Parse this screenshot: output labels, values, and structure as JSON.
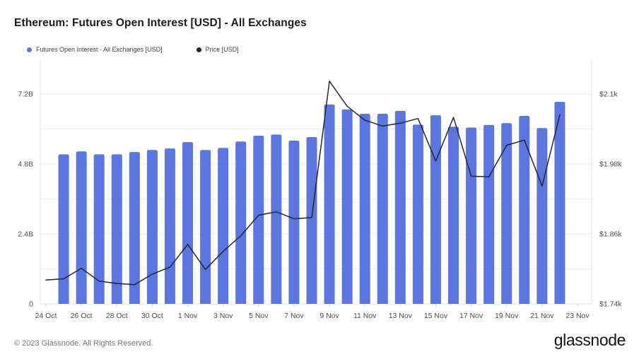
{
  "header": {
    "title": "Ethereum: Futures Open Interest [USD] - All Exchanges"
  },
  "legend": {
    "items": [
      {
        "label": "Futures Open Interest - All Exchanges [USD]",
        "marker": "dot",
        "color": "#5b75e1"
      },
      {
        "label": "Price [USD]",
        "marker": "dot",
        "color": "#26262b"
      }
    ]
  },
  "footer": {
    "copyright": "© 2023 Glassnode. All Rights Reserved.",
    "brand": "glassnode"
  },
  "colors": {
    "bar": "#5b75e1",
    "line": "#26262b",
    "grid": "#eeeef1",
    "plot_border": "#e4e4e8",
    "tick_mark": "#d4d4d9",
    "axis_text": "#4b4b52",
    "background": "#ffffff"
  },
  "chart_data": {
    "type": "bar+line (dual axis time series)",
    "title": "Ethereum: Futures Open Interest [USD] - All Exchanges",
    "grid": "horizontal only",
    "legend_position": "top-left",
    "x_domain": [
      "24 Oct",
      "25 Oct",
      "26 Oct",
      "27 Oct",
      "28 Oct",
      "29 Oct",
      "30 Oct",
      "31 Oct",
      "1 Nov",
      "2 Nov",
      "3 Nov",
      "4 Nov",
      "5 Nov",
      "6 Nov",
      "7 Nov",
      "8 Nov",
      "9 Nov",
      "10 Nov",
      "11 Nov",
      "12 Nov",
      "13 Nov",
      "14 Nov",
      "15 Nov",
      "16 Nov",
      "17 Nov",
      "18 Nov",
      "19 Nov",
      "20 Nov",
      "21 Nov",
      "22 Nov",
      "23 Nov"
    ],
    "x_tick_labels": [
      "24 Oct",
      "26 Oct",
      "28 Oct",
      "30 Oct",
      "1 Nov",
      "3 Nov",
      "5 Nov",
      "7 Nov",
      "9 Nov",
      "11 Nov",
      "13 Nov",
      "15 Nov",
      "17 Nov",
      "19 Nov",
      "21 Nov",
      "23 Nov"
    ],
    "left_axis": {
      "unit": "billion USD",
      "tick_labels": [
        "7.2B",
        "4.8B",
        "2.4B",
        "0"
      ],
      "tick_values": [
        7.2,
        4.8,
        2.4,
        0
      ],
      "grid_step": 1.2,
      "range": [
        0,
        7.2
      ]
    },
    "right_axis": {
      "unit": "thousand USD",
      "tick_labels": [
        "$2.1k",
        "$1.98k",
        "$1.86k",
        "$1.74k"
      ],
      "tick_values": [
        2.1,
        1.98,
        1.86,
        1.74
      ],
      "range": [
        1.74,
        2.1
      ]
    },
    "series": [
      {
        "name": "Futures Open Interest - All Exchanges [USD]",
        "type": "bar",
        "axis": "left",
        "color": "#5b75e1",
        "unit": "B",
        "points": [
          [
            "25 Oct",
            5.13
          ],
          [
            "26 Oct",
            5.23
          ],
          [
            "27 Oct",
            5.13
          ],
          [
            "28 Oct",
            5.13
          ],
          [
            "29 Oct",
            5.21
          ],
          [
            "30 Oct",
            5.28
          ],
          [
            "31 Oct",
            5.33
          ],
          [
            "1 Nov",
            5.55
          ],
          [
            "2 Nov",
            5.28
          ],
          [
            "3 Nov",
            5.35
          ],
          [
            "4 Nov",
            5.57
          ],
          [
            "5 Nov",
            5.77
          ],
          [
            "6 Nov",
            5.81
          ],
          [
            "7 Nov",
            5.6
          ],
          [
            "8 Nov",
            5.72
          ],
          [
            "9 Nov",
            6.84
          ],
          [
            "10 Nov",
            6.67
          ],
          [
            "11 Nov",
            6.52
          ],
          [
            "12 Nov",
            6.52
          ],
          [
            "13 Nov",
            6.62
          ],
          [
            "14 Nov",
            6.15
          ],
          [
            "15 Nov",
            6.47
          ],
          [
            "16 Nov",
            6.08
          ],
          [
            "17 Nov",
            6.05
          ],
          [
            "18 Nov",
            6.14
          ],
          [
            "19 Nov",
            6.2
          ],
          [
            "20 Nov",
            6.45
          ],
          [
            "21 Nov",
            6.03
          ],
          [
            "22 Nov",
            6.93
          ]
        ]
      },
      {
        "name": "Price [USD]",
        "type": "line",
        "axis": "right",
        "color": "#26262b",
        "unit": "k",
        "points": [
          [
            "24 Oct",
            1.781
          ],
          [
            "25 Oct",
            1.783
          ],
          [
            "26 Oct",
            1.801
          ],
          [
            "27 Oct",
            1.779
          ],
          [
            "28 Oct",
            1.775
          ],
          [
            "29 Oct",
            1.773
          ],
          [
            "30 Oct",
            1.791
          ],
          [
            "31 Oct",
            1.803
          ],
          [
            "1 Nov",
            1.842
          ],
          [
            "2 Nov",
            1.799
          ],
          [
            "3 Nov",
            1.83
          ],
          [
            "4 Nov",
            1.857
          ],
          [
            "5 Nov",
            1.892
          ],
          [
            "6 Nov",
            1.898
          ],
          [
            "7 Nov",
            1.886
          ],
          [
            "8 Nov",
            1.888
          ],
          [
            "9 Nov",
            2.122
          ],
          [
            "10 Nov",
            2.079
          ],
          [
            "11 Nov",
            2.055
          ],
          [
            "12 Nov",
            2.045
          ],
          [
            "13 Nov",
            2.05
          ],
          [
            "14 Nov",
            2.058
          ],
          [
            "15 Nov",
            1.985
          ],
          [
            "16 Nov",
            2.06
          ],
          [
            "17 Nov",
            1.959
          ],
          [
            "18 Nov",
            1.958
          ],
          [
            "19 Nov",
            2.012
          ],
          [
            "20 Nov",
            2.021
          ],
          [
            "21 Nov",
            1.942
          ],
          [
            "22 Nov",
            2.064
          ]
        ]
      }
    ]
  }
}
